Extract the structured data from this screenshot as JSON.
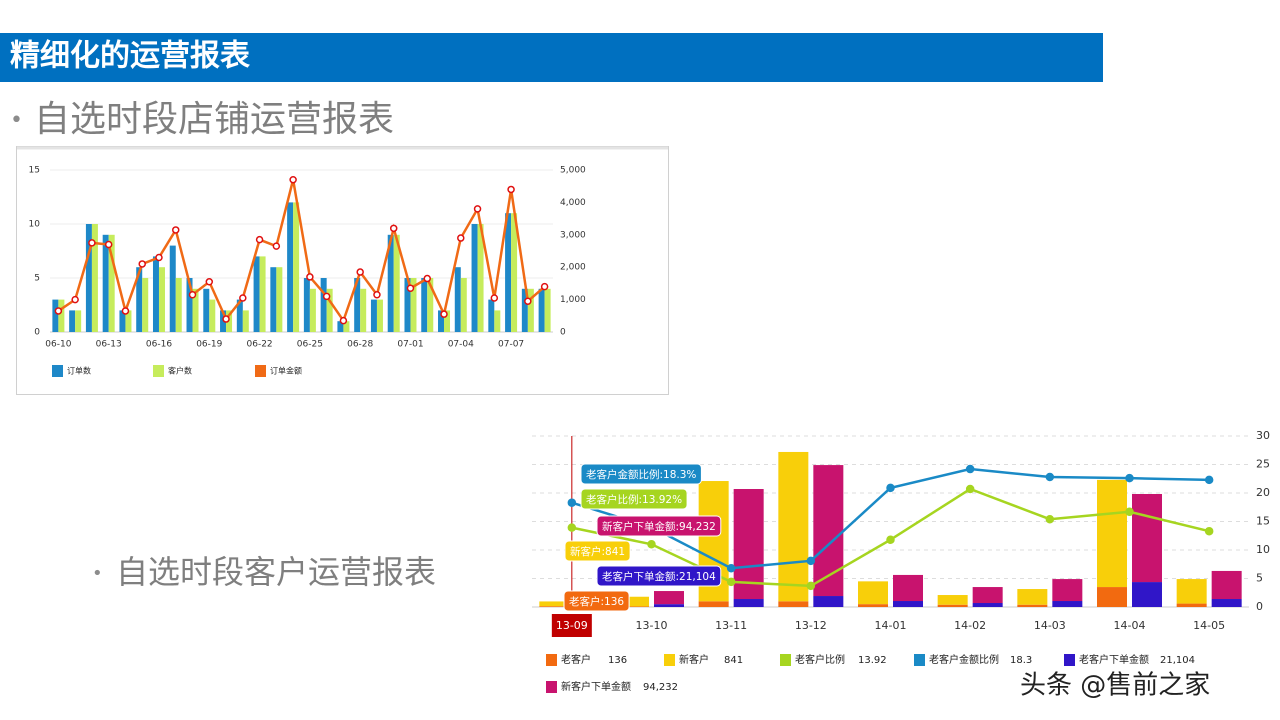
{
  "header": {
    "title": "精细化的运营报表"
  },
  "bullets": [
    "自选时段店铺运营报表",
    "自选时段客户运营报表"
  ],
  "watermark": "头条 @售前之家",
  "chart_data": [
    {
      "type": "bar-line",
      "stacked": false,
      "grid": true,
      "categories": [
        "06-10",
        null,
        null,
        "06-13",
        null,
        null,
        "06-16",
        null,
        null,
        "06-19",
        null,
        null,
        "06-22",
        null,
        null,
        "06-25",
        null,
        null,
        "06-28",
        null,
        null,
        "07-01",
        null,
        null,
        "07-04",
        null,
        null,
        "07-07",
        null,
        null
      ],
      "series": [
        {
          "name": "订单数",
          "type": "bar",
          "color": "#1e88c8",
          "values": [
            3,
            2,
            10,
            9,
            2,
            6,
            7,
            8,
            5,
            4,
            2,
            3,
            7,
            6,
            12,
            5,
            5,
            1,
            5,
            3,
            9,
            5,
            5,
            2,
            6,
            10,
            3,
            11,
            4,
            4
          ]
        },
        {
          "name": "客户数",
          "type": "bar",
          "color": "#c6ec5c",
          "values": [
            3,
            2,
            10,
            9,
            2,
            5,
            6,
            5,
            4,
            3,
            2,
            2,
            7,
            6,
            12,
            4,
            4,
            1,
            4,
            3,
            9,
            5,
            5,
            2,
            5,
            10,
            2,
            11,
            4,
            4
          ]
        },
        {
          "name": "订单金额",
          "type": "line",
          "axis": "y2",
          "color": "#f06a16",
          "values": [
            650,
            1000,
            2750,
            2700,
            650,
            2100,
            2300,
            3150,
            1150,
            1550,
            400,
            1050,
            2850,
            2650,
            4700,
            1700,
            1100,
            350,
            1850,
            1150,
            3200,
            1350,
            1650,
            550,
            2900,
            3800,
            1050,
            4400,
            950,
            1400
          ]
        }
      ],
      "ylim": [
        0,
        15
      ],
      "yticks": [
        0,
        5,
        10,
        15
      ],
      "y2lim": [
        0,
        5000
      ],
      "y2ticks": [
        0,
        {
          "value": 1000,
          "label": "1,000"
        },
        {
          "value": 2000,
          "label": "2,000"
        },
        {
          "value": 3000,
          "label": "3,000"
        },
        {
          "value": 4000,
          "label": "4,000"
        },
        {
          "value": 5000,
          "label": "5,000"
        }
      ]
    },
    {
      "type": "bar-line",
      "stacked": true,
      "grid": true,
      "categories": [
        "13-09",
        "13-10",
        "13-11",
        "13-12",
        "14-01",
        "14-02",
        "14-03",
        "14-04",
        "14-05"
      ],
      "series": [
        {
          "name": "老客户",
          "type": "bar",
          "color": "#f26a10",
          "values": [
            136,
            100,
            1000,
            1000,
            500,
            400,
            400,
            3500,
            600
          ]
        },
        {
          "name": "新客户",
          "type": "bar",
          "color": "#f8cf0a",
          "values": [
            841,
            1700,
            21100,
            26200,
            4000,
            1700,
            2750,
            18800,
            4300
          ]
        },
        {
          "name": "老客户比例",
          "type": "line",
          "axis": "y2",
          "color": "#a6d520",
          "values": [
            13.92,
            11,
            4.4,
            3.7,
            11.8,
            20.7,
            15.4,
            16.7,
            13.3
          ]
        },
        {
          "name": "老客户金额比例",
          "type": "line",
          "axis": "y2",
          "color": "#1a8ac6",
          "values": [
            18.3,
            14,
            6.8,
            8.1,
            20.9,
            24.2,
            22.8,
            22.6,
            22.3
          ]
        },
        {
          "name": "老客户下单金额",
          "type": "bar",
          "axis": "y3",
          "color": "#3016c8",
          "legend_value": "21,104",
          "values": [
            21104,
            20000,
            56000,
            77000,
            42000,
            28000,
            42000,
            175000,
            56000
          ]
        },
        {
          "name": "新客户下单金额",
          "type": "bar",
          "axis": "y3",
          "color": "#c8136e",
          "legend_value": "94,232",
          "values": [
            94232,
            92000,
            772000,
            919000,
            183000,
            112000,
            154000,
            618000,
            197000
          ]
        }
      ],
      "tooltips": [
        "老客户:136",
        "新客户:841",
        "老客户比例:13.92%",
        "老客户金额比例:18.3%",
        "老客户下单金额:21,104",
        "新客户下单金额:94,232"
      ],
      "ylim": [
        0,
        30000
      ],
      "y3lim": [
        0,
        1200000
      ],
      "y2lim": [
        0,
        30
      ],
      "y2ticks": [
        0,
        5,
        10,
        15,
        20,
        25,
        30
      ]
    }
  ]
}
